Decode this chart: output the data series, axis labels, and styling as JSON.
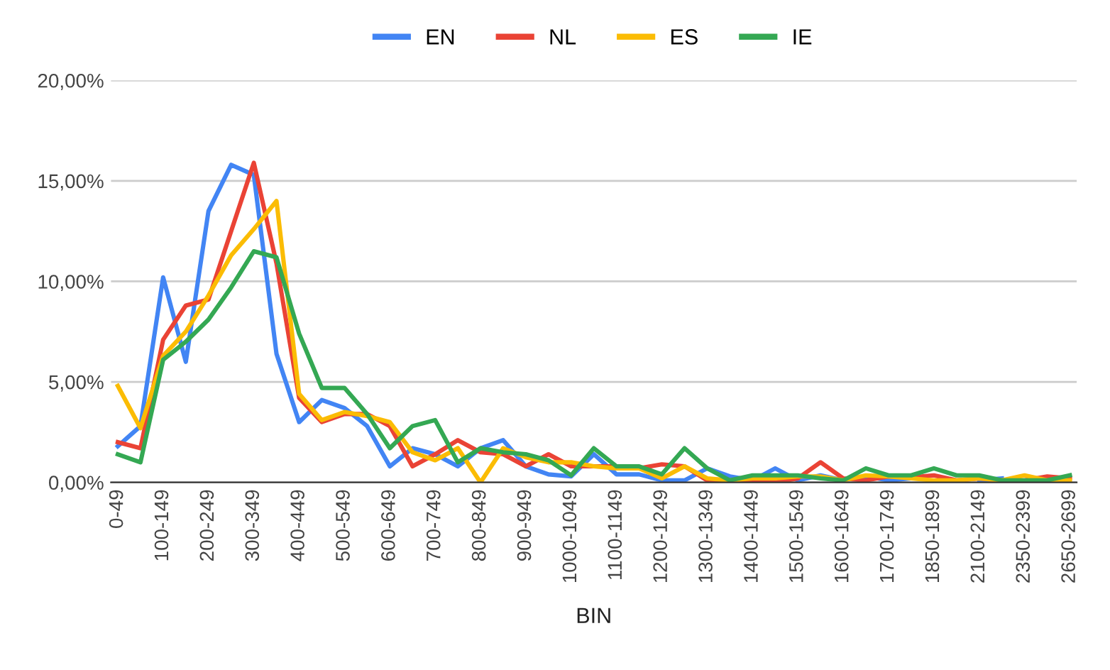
{
  "chart_data": {
    "type": "line",
    "xlabel": "BIN",
    "categories": [
      "0-49",
      null,
      "100-149",
      null,
      "200-249",
      null,
      "300-349",
      null,
      "400-449",
      null,
      "500-549",
      null,
      "600-649",
      null,
      "700-749",
      null,
      "800-849",
      null,
      "900-949",
      null,
      "1000-1049",
      null,
      "1100-1149",
      null,
      "1200-1249",
      null,
      "1300-1349",
      null,
      "1400-1449",
      null,
      "1500-1549",
      null,
      "1600-1649",
      null,
      "1700-1749",
      null,
      "1850-1899",
      null,
      "2100-2149",
      null,
      "2350-2399",
      null,
      "2650-2699"
    ],
    "series": [
      {
        "name": "EN",
        "color": "#4285f4",
        "values": [
          1.8,
          2.8,
          10.2,
          6.0,
          13.5,
          15.8,
          15.3,
          6.4,
          3.0,
          4.1,
          3.7,
          2.8,
          0.8,
          1.7,
          1.4,
          0.8,
          1.7,
          2.1,
          0.8,
          0.4,
          0.3,
          1.4,
          0.4,
          0.4,
          0.1,
          0.1,
          0.7,
          0.3,
          0.1,
          0.7,
          0.1,
          0.35,
          0.1,
          0.3,
          0.1,
          0.2,
          null,
          null,
          0.1,
          0.2,
          null,
          null,
          null
        ]
      },
      {
        "name": "NL",
        "color": "#ea4335",
        "values": [
          2.0,
          1.7,
          7.1,
          8.8,
          9.1,
          12.5,
          15.9,
          10.9,
          4.2,
          3.0,
          3.4,
          3.4,
          2.8,
          0.8,
          1.4,
          2.1,
          1.5,
          1.4,
          0.8,
          1.4,
          0.8,
          0.8,
          0.8,
          0.7,
          0.9,
          0.8,
          0.1,
          0,
          0,
          0,
          0.2,
          1.0,
          0.2,
          0.1,
          0.3,
          0.25,
          0.35,
          0.1,
          0.2,
          0.1,
          0.1,
          0.3,
          0.2
        ]
      },
      {
        "name": "ES",
        "color": "#fbbc04",
        "values": [
          4.8,
          2.7,
          6.3,
          7.5,
          9.3,
          11.3,
          12.6,
          14.0,
          4.4,
          3.1,
          3.5,
          3.3,
          3.0,
          1.5,
          1.1,
          1.7,
          0,
          1.7,
          1.25,
          1.0,
          1.0,
          0.8,
          0.7,
          0.7,
          0.2,
          0.8,
          0.2,
          0.1,
          0.2,
          0.2,
          0.3,
          0.3,
          0.1,
          0.35,
          0.3,
          0.2,
          0.1,
          0.1,
          0.2,
          0.1,
          0.35,
          0.1,
          0.1
        ]
      },
      {
        "name": "IE",
        "color": "#34a853",
        "values": [
          1.4,
          1.0,
          6.1,
          7.0,
          8.1,
          9.7,
          11.5,
          11.2,
          7.4,
          4.7,
          4.7,
          3.4,
          1.7,
          2.8,
          3.1,
          1.0,
          1.7,
          1.5,
          1.4,
          1.1,
          0.35,
          1.7,
          0.8,
          0.8,
          0.4,
          1.7,
          0.7,
          0.1,
          0.35,
          0.35,
          0.35,
          0.2,
          0.1,
          0.7,
          0.35,
          0.35,
          0.7,
          0.35,
          0.35,
          0.1,
          0.1,
          0.1,
          0.35
        ]
      }
    ],
    "ylim": [
      0,
      20
    ],
    "yticks": [
      {
        "value": 0,
        "label": "0,00%"
      },
      {
        "value": 5,
        "label": "5,00%"
      },
      {
        "value": 10,
        "label": "10,00%"
      },
      {
        "value": 15,
        "label": "15,00%"
      },
      {
        "value": 20,
        "label": "20,00%"
      }
    ],
    "grid": "y",
    "legend": "top",
    "line_style": "solid",
    "marker": "none"
  }
}
